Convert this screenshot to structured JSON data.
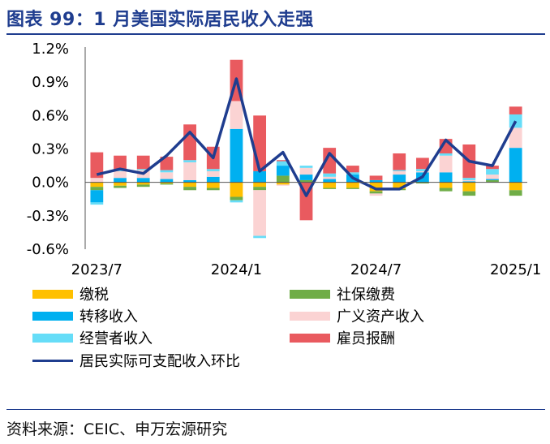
{
  "title": "图表 99：1 月美国实际居民收入走强",
  "source": "资料来源：CEIC、申万宏源研究",
  "colors": {
    "tax": "#ffc000",
    "social": "#70ad47",
    "transfer": "#00b0f0",
    "asset": "#fbd3d3",
    "proprietor": "#66ddf8",
    "wages": "#e95a5f",
    "line": "#1f3d8f"
  },
  "chart_data": {
    "type": "bar",
    "stacked": true,
    "title": "",
    "xlabel": "",
    "ylabel": "",
    "ylim": [
      -0.6,
      1.2
    ],
    "y_ticks": [
      "1.2%",
      "0.9%",
      "0.6%",
      "0.3%",
      "0.0%",
      "-0.3%",
      "-0.6%"
    ],
    "y_tick_values": [
      1.2,
      0.9,
      0.6,
      0.3,
      0.0,
      -0.3,
      -0.6
    ],
    "x_tick_labels": [
      "2023/7",
      "2024/1",
      "2024/7",
      "2025/1"
    ],
    "x_tick_index": [
      0,
      6,
      12,
      18
    ],
    "categories": [
      "2023/7",
      "2023/8",
      "2023/9",
      "2023/10",
      "2023/11",
      "2023/12",
      "2024/1",
      "2024/2",
      "2024/3",
      "2024/4",
      "2024/5",
      "2024/6",
      "2024/7",
      "2024/8",
      "2024/9",
      "2024/10",
      "2024/11",
      "2024/12",
      "2025/1"
    ],
    "series": [
      {
        "name": "缴税",
        "key": "tax",
        "values": [
          -0.04,
          -0.03,
          -0.02,
          -0.01,
          -0.04,
          -0.05,
          -0.13,
          -0.04,
          -0.02,
          0.0,
          -0.05,
          -0.05,
          -0.08,
          -0.06,
          0.0,
          -0.05,
          -0.08,
          0.0,
          -0.07
        ]
      },
      {
        "name": "社保缴费",
        "key": "social",
        "values": [
          -0.03,
          -0.02,
          -0.02,
          -0.01,
          -0.03,
          -0.02,
          -0.03,
          -0.03,
          0.06,
          0.02,
          -0.01,
          -0.01,
          -0.02,
          -0.01,
          -0.01,
          -0.03,
          -0.04,
          0.02,
          -0.05
        ]
      },
      {
        "name": "转移收入",
        "key": "transfer",
        "values": [
          -0.11,
          0.04,
          0.04,
          0.03,
          0.02,
          0.05,
          0.48,
          0.1,
          0.09,
          0.05,
          0.03,
          0.07,
          0.02,
          0.07,
          0.09,
          0.09,
          0.01,
          0.01,
          0.31
        ]
      },
      {
        "name": "广义资产收入",
        "key": "asset",
        "values": [
          0.04,
          0.06,
          0.07,
          0.06,
          0.16,
          0.05,
          0.25,
          -0.41,
          -0.01,
          0.06,
          0.02,
          0.0,
          -0.02,
          0.03,
          0.01,
          0.15,
          0.01,
          0.04,
          0.18
        ]
      },
      {
        "name": "经营者收入",
        "key": "proprietor",
        "values": [
          -0.02,
          0.01,
          0.01,
          0.02,
          0.02,
          0.02,
          -0.02,
          -0.02,
          0.04,
          0.02,
          0.03,
          0.02,
          0.0,
          0.01,
          0.02,
          0.02,
          0.02,
          0.05,
          0.12
        ]
      },
      {
        "name": "雇员报酬",
        "key": "wages",
        "values": [
          0.23,
          0.13,
          0.12,
          0.12,
          0.32,
          0.2,
          0.37,
          0.5,
          0.01,
          -0.34,
          0.23,
          0.06,
          0.04,
          0.15,
          0.1,
          0.13,
          0.3,
          0.03,
          0.07
        ]
      }
    ],
    "line": {
      "name": "居民实际可支配收入环比",
      "key": "line",
      "values": [
        0.07,
        0.12,
        0.08,
        0.24,
        0.45,
        0.22,
        0.93,
        0.1,
        0.27,
        -0.12,
        0.26,
        0.04,
        -0.06,
        -0.06,
        0.05,
        0.38,
        0.19,
        0.15,
        0.55
      ]
    }
  }
}
